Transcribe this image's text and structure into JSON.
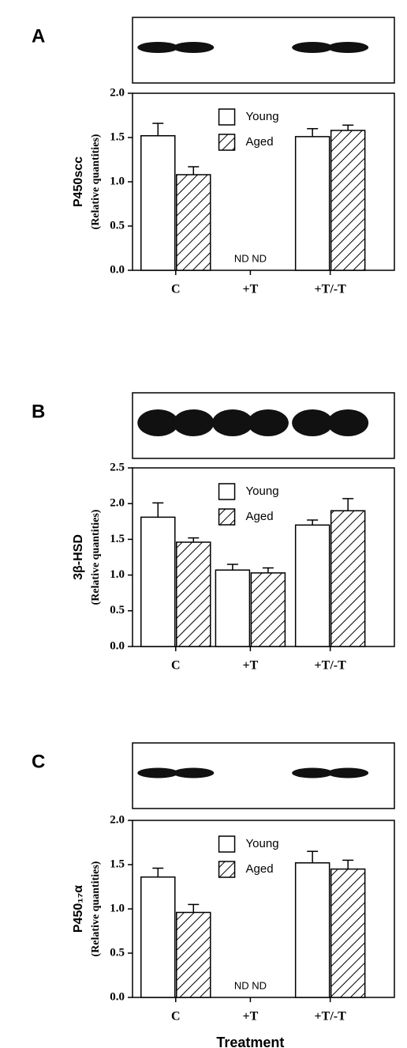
{
  "chart_data": [
    {
      "type": "bar",
      "panel": "A",
      "ylabel": "P450scc",
      "ylabel_sub": "(Relative quantities)",
      "categories": [
        "C",
        "+T",
        "+T/-T"
      ],
      "series": [
        {
          "name": "Young",
          "color": "#ffffff",
          "values": [
            1.52,
            null,
            1.51
          ],
          "errors": [
            0.14,
            null,
            0.09
          ]
        },
        {
          "name": "Aged",
          "color": "#ffffff",
          "hatch": true,
          "values": [
            1.08,
            null,
            1.58
          ],
          "errors": [
            0.09,
            null,
            0.06
          ]
        }
      ],
      "ylim": [
        0,
        2
      ],
      "yticks": [
        {
          "value": 0,
          "label": "0.0"
        },
        0.5,
        {
          "value": 1,
          "label": "1.0"
        },
        1.5,
        {
          "value": 2,
          "label": "2.0"
        }
      ],
      "annotation": "ND ND",
      "legend": "upper center"
    },
    {
      "type": "bar",
      "panel": "B",
      "ylabel": "3β-HSD",
      "ylabel_sub": "(Relative quantities)",
      "categories": [
        "C",
        "+T",
        "+T/-T"
      ],
      "series": [
        {
          "name": "Young",
          "color": "#ffffff",
          "values": [
            1.81,
            1.07,
            1.7
          ],
          "errors": [
            0.2,
            0.08,
            0.07
          ]
        },
        {
          "name": "Aged",
          "color": "#ffffff",
          "hatch": true,
          "values": [
            1.46,
            1.03,
            1.9
          ],
          "errors": [
            0.06,
            0.07,
            0.17
          ]
        }
      ],
      "ylim": [
        0,
        2.5
      ],
      "yticks": [
        {
          "value": 0,
          "label": "0.0"
        },
        0.5,
        {
          "value": 1,
          "label": "1.0"
        },
        1.5,
        {
          "value": 2,
          "label": "2.0"
        },
        2.5
      ],
      "legend": "upper center"
    },
    {
      "type": "bar",
      "panel": "C",
      "ylabel": "P450₁₇α",
      "ylabel_sub": "(Relative quantities)",
      "categories": [
        "C",
        "+T",
        "+T/-T"
      ],
      "series": [
        {
          "name": "Young",
          "color": "#ffffff",
          "values": [
            1.36,
            null,
            1.52
          ],
          "errors": [
            0.1,
            null,
            0.13
          ]
        },
        {
          "name": "Aged",
          "color": "#ffffff",
          "hatch": true,
          "values": [
            0.96,
            null,
            1.45
          ],
          "errors": [
            0.09,
            null,
            0.1
          ]
        }
      ],
      "ylim": [
        0,
        2
      ],
      "yticks": [
        {
          "value": 0,
          "label": "0.0"
        },
        0.5,
        {
          "value": 1,
          "label": "1.0"
        },
        1.5,
        {
          "value": 2,
          "label": "2.0"
        }
      ],
      "annotation": "ND ND",
      "xlabel": "Treatment",
      "legend": "upper center"
    }
  ]
}
